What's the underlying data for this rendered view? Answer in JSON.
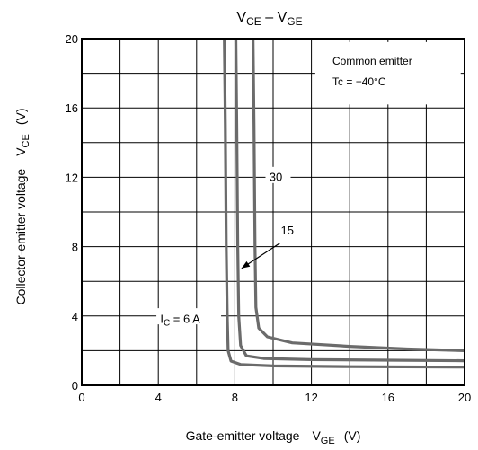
{
  "chart_data": {
    "type": "line",
    "title": "VCE – VGE",
    "title_parts": {
      "v1": "V",
      "v1_sub": "CE",
      "dash": " – ",
      "v2": "V",
      "v2_sub": "GE"
    },
    "xlabel": "Gate-emitter voltage V_GE (V)",
    "xlabel_parts": {
      "main": "Gate-emitter voltage",
      "sym": "V",
      "sub": "GE",
      "unit": "(V)"
    },
    "ylabel": "Collector-emitter voltage V_CE (V)",
    "ylabel_parts": {
      "main": "Collector-emitter voltage",
      "sym": "V",
      "sub": "CE",
      "unit": "(V)"
    },
    "xlim": [
      0,
      20
    ],
    "ylim": [
      0,
      20
    ],
    "x_ticks": [
      0,
      4,
      8,
      12,
      16,
      20
    ],
    "y_ticks": [
      0,
      4,
      8,
      12,
      16,
      20
    ],
    "x_tick_labels": [
      "0",
      "4",
      "8",
      "12",
      "16",
      "20"
    ],
    "y_tick_labels": [
      "0",
      "4",
      "8",
      "12",
      "16",
      "20"
    ],
    "grid": true,
    "grid_step": 2,
    "colors": {
      "curve": "#6b6b6b",
      "axis": "#000000",
      "grid": "#000000"
    },
    "annotation": {
      "line1": "Common emitter",
      "line2": "Tc = −40°C"
    },
    "series": [
      {
        "label": "IC = 6 A",
        "label_parts": {
          "sym": "I",
          "sub": "C",
          "rest": " = 6 A"
        },
        "points": [
          [
            7.45,
            20
          ],
          [
            7.5,
            15
          ],
          [
            7.55,
            8
          ],
          [
            7.6,
            4
          ],
          [
            7.65,
            2
          ],
          [
            7.8,
            1.4
          ],
          [
            8.3,
            1.2
          ],
          [
            10,
            1.12
          ],
          [
            14,
            1.08
          ],
          [
            20,
            1.05
          ]
        ]
      },
      {
        "label": "15",
        "points": [
          [
            8.05,
            20
          ],
          [
            8.1,
            15
          ],
          [
            8.15,
            8
          ],
          [
            8.2,
            4
          ],
          [
            8.3,
            2.3
          ],
          [
            8.6,
            1.7
          ],
          [
            9.5,
            1.55
          ],
          [
            12,
            1.48
          ],
          [
            16,
            1.45
          ],
          [
            20,
            1.42
          ]
        ]
      },
      {
        "label": "30",
        "points": [
          [
            8.95,
            20
          ],
          [
            9.0,
            15
          ],
          [
            9.05,
            8
          ],
          [
            9.1,
            4.5
          ],
          [
            9.25,
            3.3
          ],
          [
            9.7,
            2.8
          ],
          [
            11,
            2.45
          ],
          [
            14,
            2.25
          ],
          [
            17,
            2.1
          ],
          [
            20,
            2.0
          ]
        ]
      }
    ]
  }
}
